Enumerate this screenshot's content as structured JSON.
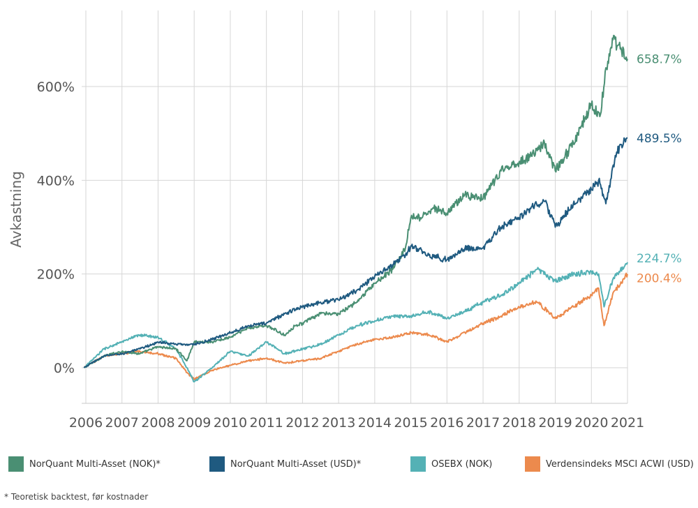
{
  "chart_data": {
    "type": "line",
    "ylabel": "Avkastning",
    "xlabel": "",
    "ylim": [
      -75,
      750
    ],
    "xlim": [
      2005.95,
      2021.0
    ],
    "y_ticks": [
      0,
      200,
      400,
      600
    ],
    "y_tick_labels": [
      "0%",
      "200%",
      "400%",
      "600%"
    ],
    "x_ticks": [
      2006,
      2007,
      2008,
      2009,
      2010,
      2011,
      2012,
      2013,
      2014,
      2015,
      2016,
      2017,
      2018,
      2019,
      2020,
      2021
    ],
    "x_tick_labels": [
      "2006",
      "2007",
      "2008",
      "2009",
      "2010",
      "2011",
      "2012",
      "2013",
      "2014",
      "2015",
      "2016",
      "2017",
      "2018",
      "2019",
      "2020",
      "2021"
    ],
    "grid": true,
    "series": [
      {
        "name": "NorQuant Multi-Asset (NOK)*",
        "color": "#4a8f73",
        "end_label": "658.7%",
        "x": [
          2005.95,
          2006.5,
          2007.0,
          2007.5,
          2008.0,
          2008.5,
          2008.8,
          2009.0,
          2009.5,
          2010.0,
          2010.5,
          2011.0,
          2011.5,
          2011.8,
          2012.0,
          2012.5,
          2013.0,
          2013.5,
          2014.0,
          2014.5,
          2014.85,
          2015.0,
          2015.3,
          2015.6,
          2016.0,
          2016.5,
          2017.0,
          2017.5,
          2018.0,
          2018.3,
          2018.7,
          2019.0,
          2019.5,
          2020.0,
          2020.25,
          2020.4,
          2020.6,
          2020.8,
          2021.0
        ],
        "y": [
          0,
          25,
          35,
          30,
          45,
          40,
          15,
          55,
          55,
          65,
          85,
          90,
          70,
          90,
          95,
          115,
          115,
          140,
          180,
          210,
          255,
          320,
          320,
          340,
          330,
          370,
          360,
          420,
          440,
          450,
          480,
          420,
          480,
          560,
          540,
          640,
          700,
          680,
          659
        ]
      },
      {
        "name": "NorQuant Multi-Asset (USD)*",
        "color": "#1f5a80",
        "end_label": "489.5%",
        "x": [
          2005.95,
          2006.5,
          2007.0,
          2007.5,
          2008.0,
          2008.5,
          2009.0,
          2009.5,
          2010.0,
          2010.5,
          2011.0,
          2011.5,
          2012.0,
          2012.5,
          2013.0,
          2013.5,
          2014.0,
          2014.5,
          2014.85,
          2015.0,
          2015.5,
          2016.0,
          2016.5,
          2017.0,
          2017.5,
          2018.0,
          2018.3,
          2018.7,
          2019.0,
          2019.5,
          2020.0,
          2020.2,
          2020.4,
          2020.7,
          2021.0
        ],
        "y": [
          0,
          25,
          30,
          40,
          55,
          50,
          50,
          60,
          75,
          90,
          95,
          115,
          130,
          140,
          145,
          165,
          195,
          220,
          240,
          260,
          240,
          230,
          255,
          255,
          300,
          320,
          340,
          355,
          300,
          350,
          380,
          400,
          350,
          460,
          490
        ]
      },
      {
        "name": "OSEBX (NOK)",
        "color": "#54b1b5",
        "end_label": "224.7%",
        "x": [
          2005.95,
          2006.5,
          2007.0,
          2007.5,
          2008.0,
          2008.5,
          2008.8,
          2009.0,
          2009.5,
          2010.0,
          2010.5,
          2011.0,
          2011.5,
          2012.0,
          2012.5,
          2013.0,
          2013.5,
          2014.0,
          2014.5,
          2015.0,
          2015.5,
          2016.0,
          2016.5,
          2017.0,
          2017.5,
          2018.0,
          2018.5,
          2018.8,
          2019.0,
          2019.5,
          2020.0,
          2020.2,
          2020.35,
          2020.6,
          2021.0
        ],
        "y": [
          0,
          40,
          55,
          70,
          65,
          40,
          0,
          -30,
          0,
          35,
          25,
          55,
          30,
          40,
          50,
          70,
          90,
          100,
          110,
          110,
          120,
          105,
          120,
          140,
          155,
          180,
          210,
          195,
          185,
          200,
          205,
          200,
          130,
          190,
          225
        ]
      },
      {
        "name": "Verdensindeks MSCI ACWI (USD)",
        "color": "#ec8a4d",
        "end_label": "200.4%",
        "x": [
          2005.95,
          2006.5,
          2007.0,
          2007.5,
          2008.0,
          2008.5,
          2008.8,
          2009.0,
          2009.5,
          2010.0,
          2010.5,
          2011.0,
          2011.5,
          2012.0,
          2012.5,
          2013.0,
          2013.5,
          2014.0,
          2014.5,
          2015.0,
          2015.5,
          2016.0,
          2016.5,
          2017.0,
          2017.5,
          2018.0,
          2018.5,
          2018.8,
          2019.0,
          2019.5,
          2020.0,
          2020.2,
          2020.35,
          2020.6,
          2021.0
        ],
        "y": [
          0,
          25,
          30,
          35,
          30,
          20,
          -10,
          -25,
          -5,
          5,
          15,
          20,
          10,
          15,
          20,
          35,
          50,
          60,
          65,
          75,
          70,
          55,
          75,
          95,
          110,
          130,
          140,
          120,
          105,
          130,
          155,
          170,
          90,
          160,
          200
        ]
      }
    ]
  },
  "legend": {
    "items": [
      {
        "label": "NorQuant Multi-Asset (NOK)*",
        "color": "#4a8f73"
      },
      {
        "label": "NorQuant Multi-Asset (USD)*",
        "color": "#1f5a80"
      },
      {
        "label": "OSEBX (NOK)",
        "color": "#54b1b5"
      },
      {
        "label": "Verdensindeks MSCI ACWI (USD)",
        "color": "#ec8a4d"
      }
    ]
  },
  "footnote": "* Teoretisk backtest, før kostnader"
}
